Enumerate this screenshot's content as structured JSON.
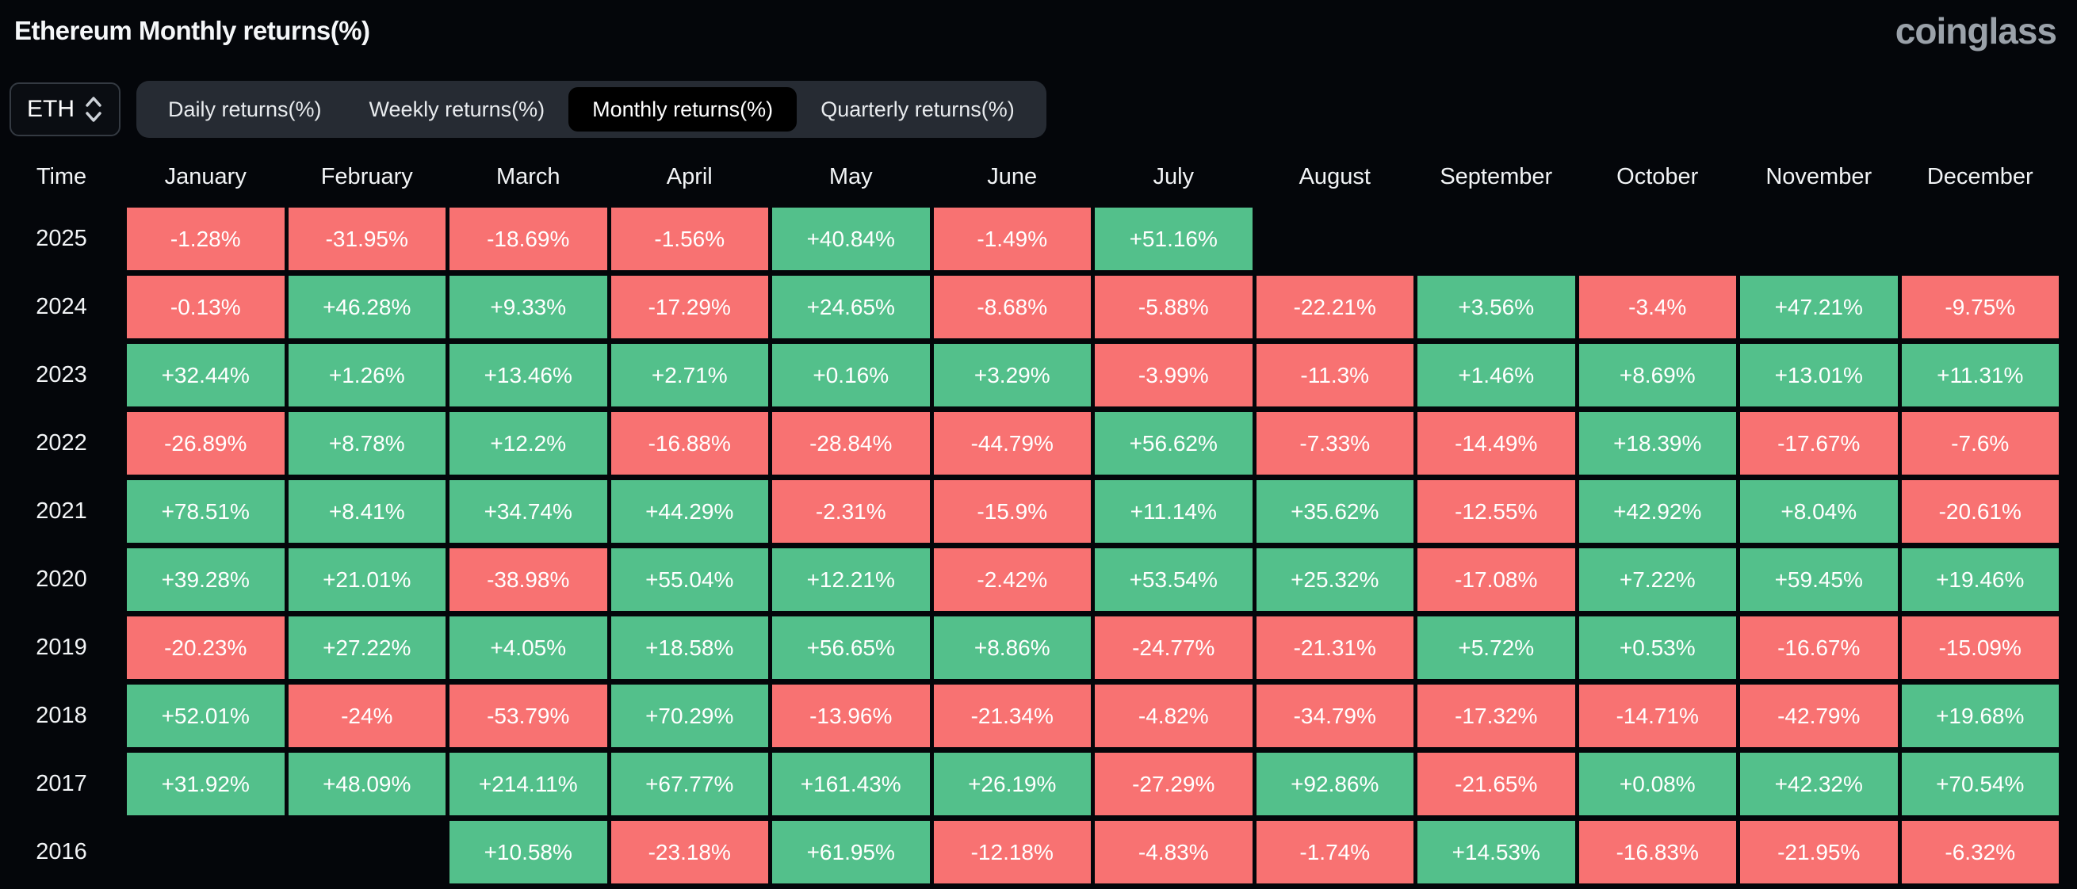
{
  "header": {
    "title": "Ethereum Monthly returns(%)",
    "logo": "coinglass"
  },
  "controls": {
    "symbol": "ETH",
    "symbol_icon": "updown-chevron-icon",
    "tabs": [
      {
        "name": "tab-daily-returns",
        "label": "Daily returns(%)",
        "active": false
      },
      {
        "name": "tab-weekly-returns",
        "label": "Weekly returns(%)",
        "active": false
      },
      {
        "name": "tab-monthly-returns",
        "label": "Monthly returns(%)",
        "active": true
      },
      {
        "name": "tab-quarterly-returns",
        "label": "Quarterly returns(%)",
        "active": false
      }
    ]
  },
  "table": {
    "time_header": "Time"
  },
  "colors": {
    "positive": "#53c08b",
    "negative": "#f87272",
    "background": "#04060a",
    "tabbar_bg": "#262b33",
    "active_tab_bg": "#000000",
    "logo": "#9aa1a9"
  },
  "chart_data": {
    "type": "heatmap",
    "title": "Ethereum Monthly returns(%)",
    "unit": "%",
    "columns": [
      "January",
      "February",
      "March",
      "April",
      "May",
      "June",
      "July",
      "August",
      "September",
      "October",
      "November",
      "December"
    ],
    "rows": [
      "2025",
      "2024",
      "2023",
      "2022",
      "2021",
      "2020",
      "2019",
      "2018",
      "2017",
      "2016"
    ],
    "values": [
      [
        -1.28,
        -31.95,
        -18.69,
        -1.56,
        40.84,
        -1.49,
        51.16,
        null,
        null,
        null,
        null,
        null
      ],
      [
        -0.13,
        46.28,
        9.33,
        -17.29,
        24.65,
        -8.68,
        -5.88,
        -22.21,
        3.56,
        -3.4,
        47.21,
        -9.75
      ],
      [
        32.44,
        1.26,
        13.46,
        2.71,
        0.16,
        3.29,
        -3.99,
        -11.3,
        1.46,
        8.69,
        13.01,
        11.31
      ],
      [
        -26.89,
        8.78,
        12.2,
        -16.88,
        -28.84,
        -44.79,
        56.62,
        -7.33,
        -14.49,
        18.39,
        -17.67,
        -7.6
      ],
      [
        78.51,
        8.41,
        34.74,
        44.29,
        -2.31,
        -15.9,
        11.14,
        35.62,
        -12.55,
        42.92,
        8.04,
        -20.61
      ],
      [
        39.28,
        21.01,
        -38.98,
        55.04,
        12.21,
        -2.42,
        53.54,
        25.32,
        -17.08,
        7.22,
        59.45,
        19.46
      ],
      [
        -20.23,
        27.22,
        4.05,
        18.58,
        56.65,
        8.86,
        -24.77,
        -21.31,
        5.72,
        0.53,
        -16.67,
        -15.09
      ],
      [
        52.01,
        -24,
        -53.79,
        70.29,
        -13.96,
        -21.34,
        -4.82,
        -34.79,
        -17.32,
        -14.71,
        -42.79,
        19.68
      ],
      [
        31.92,
        48.09,
        214.11,
        67.77,
        161.43,
        26.19,
        -27.29,
        92.86,
        -21.65,
        0.08,
        42.32,
        70.54
      ],
      [
        null,
        null,
        10.58,
        -23.18,
        61.95,
        -12.18,
        -4.83,
        -1.74,
        14.53,
        -16.83,
        -21.95,
        -6.32
      ]
    ],
    "positive_color": "#53c08b",
    "negative_color": "#f87272",
    "legend": "green = positive monthly return, red = negative monthly return",
    "grid": false
  }
}
